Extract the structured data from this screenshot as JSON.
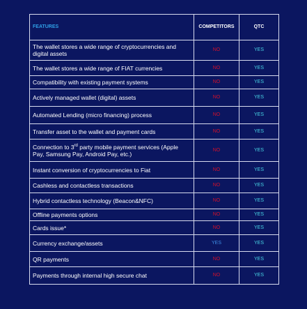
{
  "table": {
    "header": [
      "FEATURES",
      "COMPETITORS",
      "QTC"
    ],
    "rows": [
      {
        "feature": "The wallet stores a wide range of cryptocurrencies and digital assets",
        "competitors": "NO",
        "qtc": "YES"
      },
      {
        "feature": "The wallet stores a wide range of FIAT currencies",
        "competitors": "NO",
        "qtc": "YES"
      },
      {
        "feature": "Compatibility with existing payment systems",
        "competitors": "NO",
        "qtc": "YES"
      },
      {
        "feature": "Actively managed wallet (digital) assets",
        "competitors": "NO",
        "qtc": "YES"
      },
      {
        "feature": "Automated Lending (micro financing) process",
        "competitors": "NO",
        "qtc": "YES"
      },
      {
        "feature": "Transfer asset to the wallet and payment cards",
        "competitors": "NO",
        "qtc": "YES"
      },
      {
        "feature": [
          "Connection to 3",
          "rd",
          " party mobile payment services (Apple Pay, Samsung Pay, Android Pay, etc.)"
        ],
        "competitors": "NO",
        "qtc": "YES"
      },
      {
        "feature": "Instant conversion of cryptocurrencies to Fiat",
        "competitors": "NO",
        "qtc": "YES"
      },
      {
        "feature": "Cashless and contactless transactions",
        "competitors": "NO",
        "qtc": "YES"
      },
      {
        "feature": "Hybrid contactless technology (Beacon&NFC)",
        "competitors": "NO",
        "qtc": "YES"
      },
      {
        "feature": "Offline payments options",
        "competitors": "NO",
        "qtc": "YES"
      },
      {
        "feature": "Cards issue*",
        "competitors": "NO",
        "qtc": "YES"
      },
      {
        "feature": "Currency exchange/assets",
        "competitors": "YES",
        "qtc": "YES"
      },
      {
        "feature": "QR payments",
        "competitors": "NO",
        "qtc": "YES"
      },
      {
        "feature": "Payments through internal high secure chat",
        "competitors": "NO",
        "qtc": "YES"
      }
    ]
  }
}
